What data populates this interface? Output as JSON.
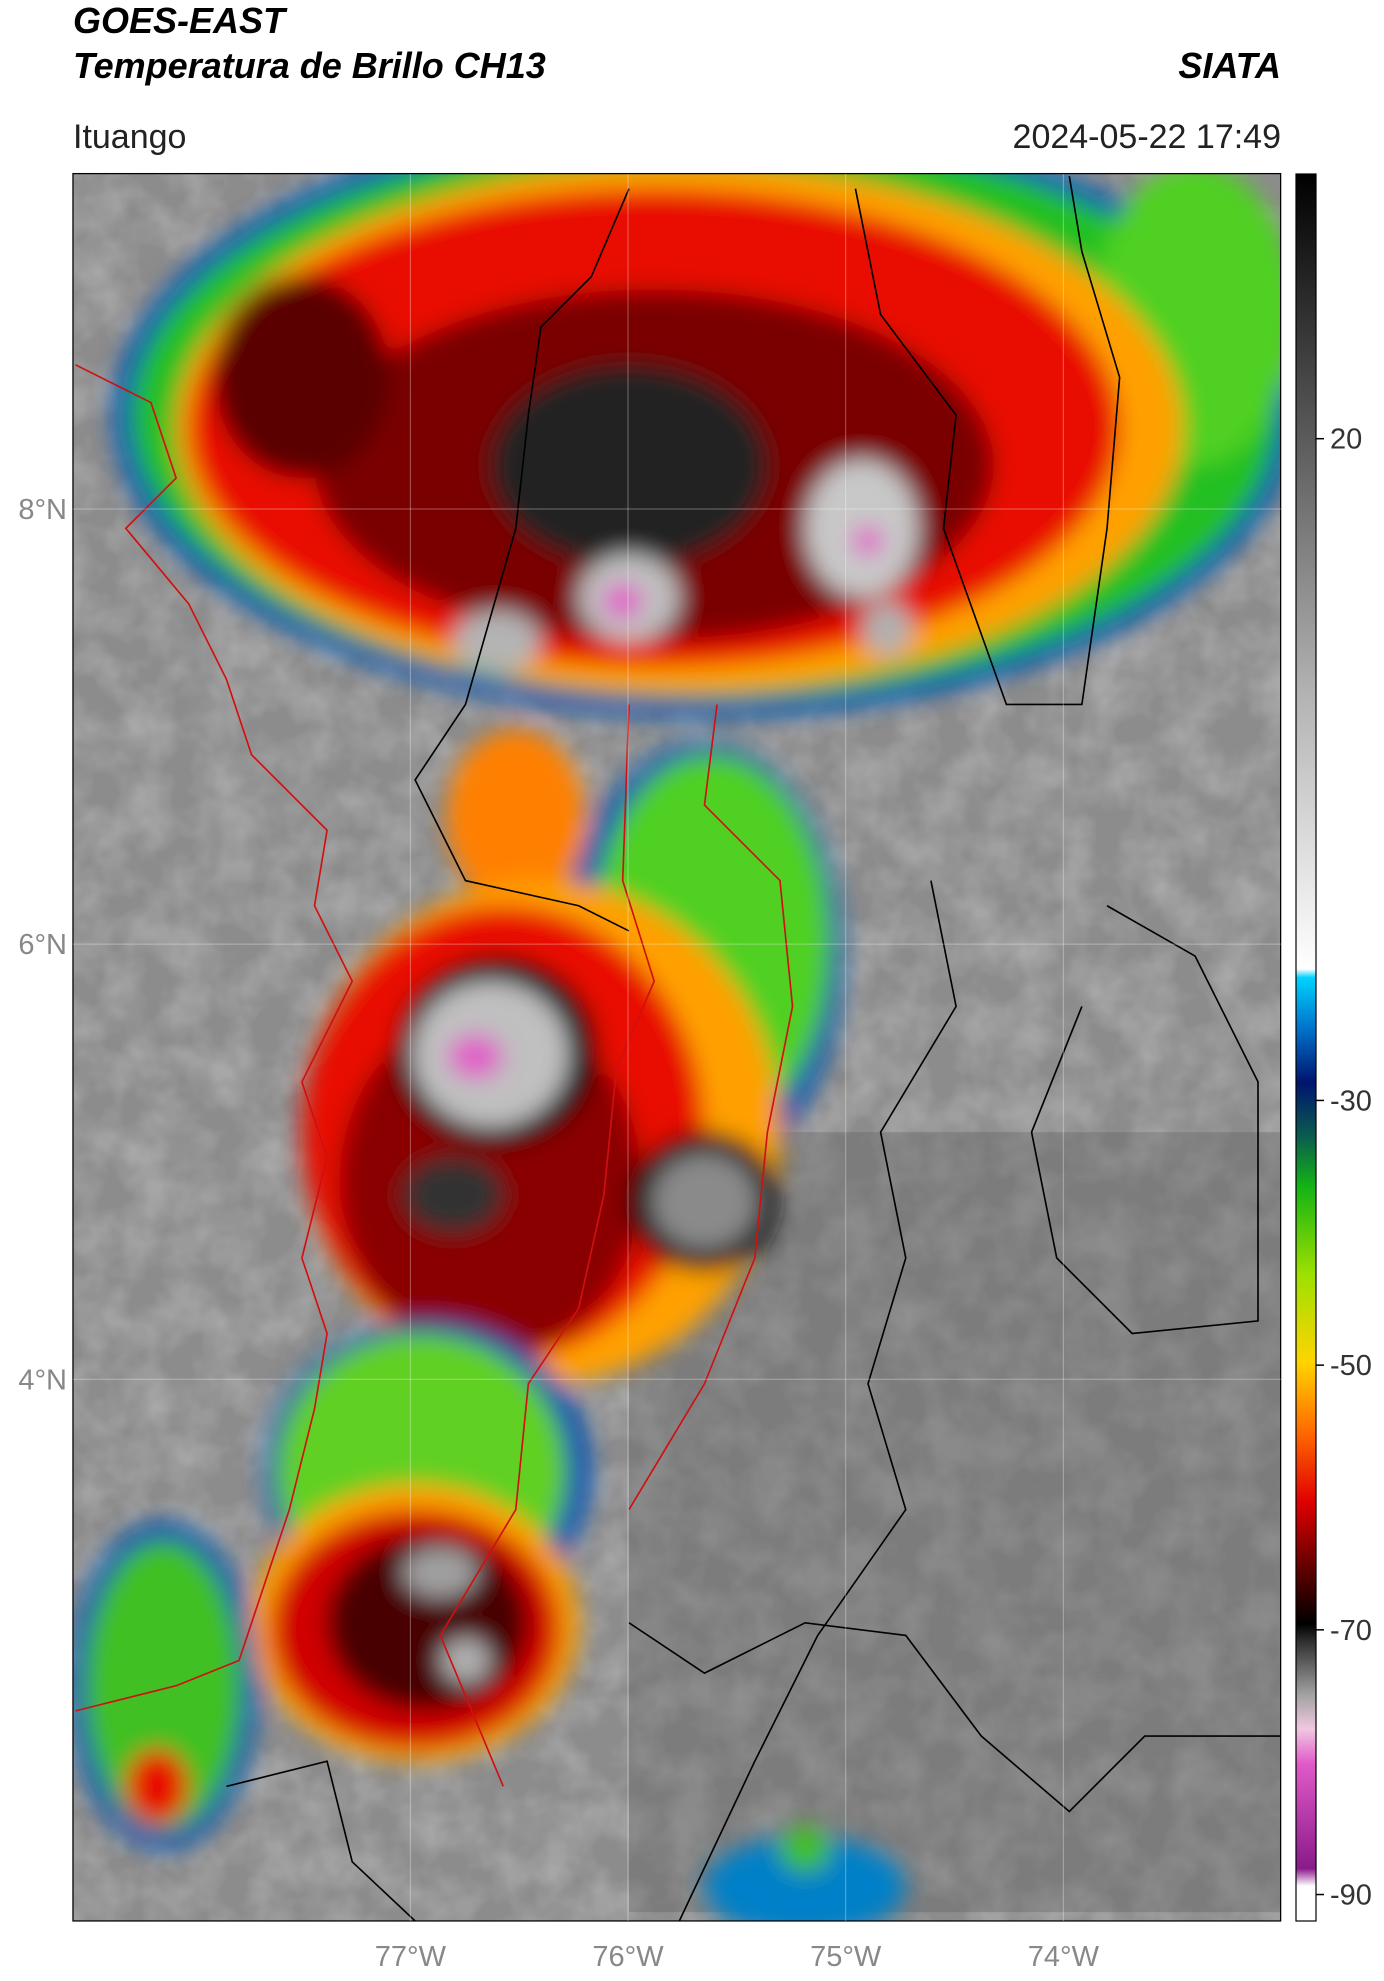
{
  "header": {
    "satellite": "GOES-EAST",
    "product": "Temperatura de Brillo CH13",
    "brand": "SIATA",
    "location": "Ituango",
    "timestamp": "2024-05-22 17:49"
  },
  "map": {
    "xlim": [
      -78.55,
      -73.0
    ],
    "ylim": [
      1.51,
      9.54
    ],
    "xticks": [
      {
        "value": -77,
        "label": "77°W"
      },
      {
        "value": -76,
        "label": "76°W"
      },
      {
        "value": -75,
        "label": "75°W"
      },
      {
        "value": -74,
        "label": "74°W"
      }
    ],
    "yticks": [
      {
        "value": 8,
        "label": "8°N"
      },
      {
        "value": 6,
        "label": "6°N"
      },
      {
        "value": 4,
        "label": "4°N"
      }
    ],
    "grid": true
  },
  "colorbar": {
    "clim": [
      -92,
      40
    ],
    "ticks": [
      20,
      -30,
      -50,
      -70,
      -90
    ]
  }
}
